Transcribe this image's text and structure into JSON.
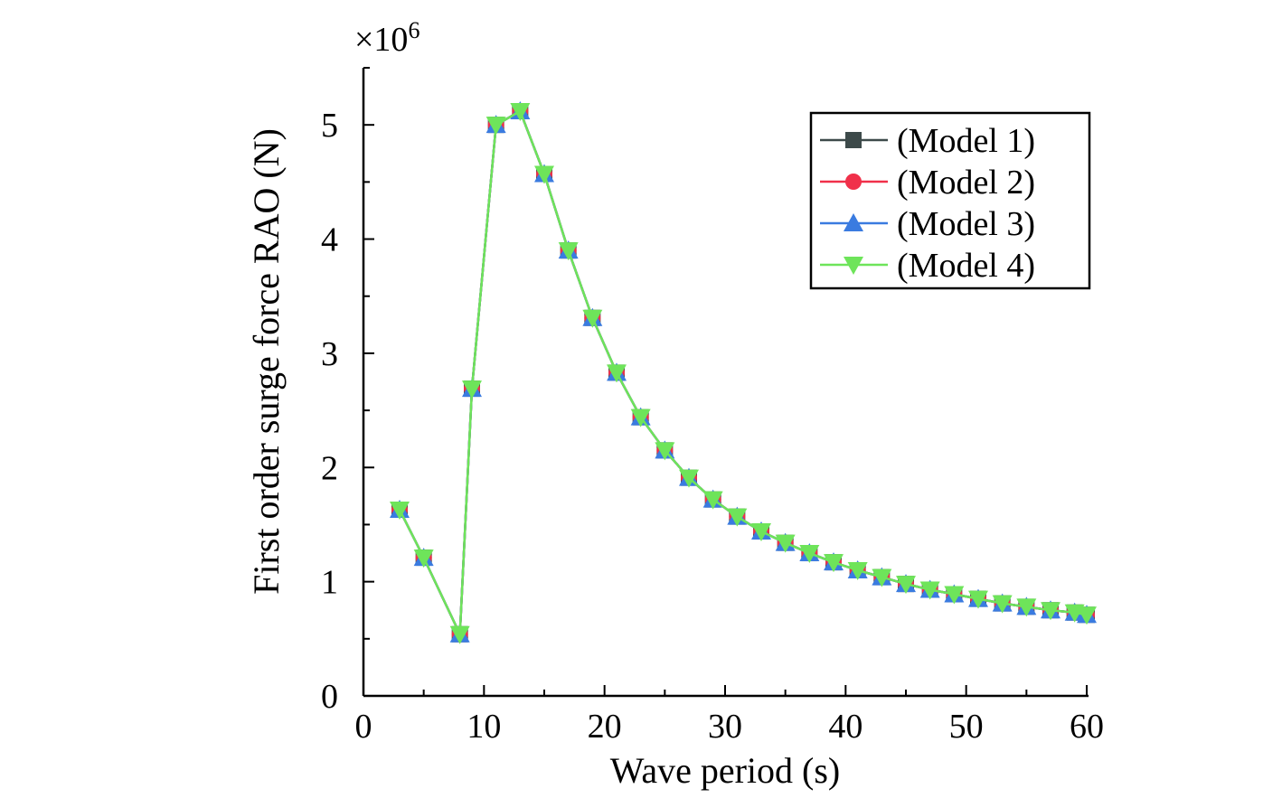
{
  "chart_data": {
    "type": "line",
    "title": "",
    "xlabel": "Wave period (s)",
    "ylabel": "First order surge force RAO (N)",
    "y_multiplier_base": "×10",
    "y_multiplier_exp": "6",
    "xlim": [
      0,
      60
    ],
    "ylim": [
      0,
      5.5
    ],
    "x_ticks": [
      0,
      10,
      20,
      30,
      40,
      50,
      60
    ],
    "y_ticks": [
      0,
      1,
      2,
      3,
      4,
      5
    ],
    "grid": false,
    "legend_position": "top-right",
    "x": [
      3,
      5,
      8,
      9,
      11,
      13,
      15,
      17,
      19,
      21,
      23,
      25,
      27,
      29,
      31,
      33,
      35,
      37,
      39,
      41,
      43,
      45,
      47,
      49,
      51,
      53,
      55,
      57,
      59,
      60
    ],
    "series": [
      {
        "name": "(Model 1)",
        "color": "#3d4a4a",
        "marker": "square",
        "values": [
          1.63,
          1.21,
          0.54,
          2.69,
          5.0,
          5.12,
          4.57,
          3.9,
          3.31,
          2.83,
          2.44,
          2.15,
          1.91,
          1.72,
          1.57,
          1.44,
          1.34,
          1.25,
          1.17,
          1.1,
          1.04,
          0.98,
          0.93,
          0.89,
          0.85,
          0.81,
          0.78,
          0.75,
          0.73,
          0.71
        ]
      },
      {
        "name": "(Model 2)",
        "color": "#f0304a",
        "marker": "circle",
        "values": [
          1.63,
          1.21,
          0.54,
          2.69,
          5.0,
          5.12,
          4.57,
          3.9,
          3.31,
          2.83,
          2.44,
          2.15,
          1.91,
          1.72,
          1.57,
          1.44,
          1.34,
          1.25,
          1.17,
          1.1,
          1.04,
          0.98,
          0.93,
          0.89,
          0.85,
          0.81,
          0.78,
          0.75,
          0.73,
          0.71
        ]
      },
      {
        "name": "(Model 3)",
        "color": "#3a7be0",
        "marker": "triangle-up",
        "values": [
          1.63,
          1.21,
          0.54,
          2.69,
          5.0,
          5.12,
          4.57,
          3.9,
          3.31,
          2.83,
          2.44,
          2.15,
          1.91,
          1.72,
          1.57,
          1.44,
          1.34,
          1.25,
          1.17,
          1.1,
          1.04,
          0.98,
          0.93,
          0.89,
          0.85,
          0.81,
          0.78,
          0.75,
          0.73,
          0.71
        ]
      },
      {
        "name": "(Model 4)",
        "color": "#6ee45a",
        "marker": "triangle-down",
        "values": [
          1.63,
          1.21,
          0.54,
          2.69,
          5.0,
          5.12,
          4.57,
          3.9,
          3.31,
          2.83,
          2.44,
          2.15,
          1.91,
          1.72,
          1.57,
          1.44,
          1.34,
          1.25,
          1.17,
          1.1,
          1.04,
          0.98,
          0.93,
          0.89,
          0.85,
          0.81,
          0.78,
          0.75,
          0.73,
          0.71
        ]
      }
    ]
  }
}
